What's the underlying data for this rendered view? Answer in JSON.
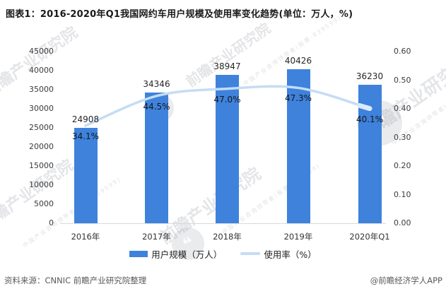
{
  "title": "图表1：2016-2020年Q1我国网约车用户规模及使用率变化趋势(单位：万人，%)",
  "chart_data": {
    "type": "bar",
    "subtype": "bar-line-combo",
    "categories": [
      "2016年",
      "2017年",
      "2018年",
      "2019年",
      "2020年Q1"
    ],
    "series": [
      {
        "name": "用户规模（万人）",
        "type": "bar",
        "values": [
          24908,
          34346,
          38947,
          40426,
          36230
        ],
        "labels": [
          "24908",
          "34346",
          "38947",
          "40426",
          "36230"
        ],
        "color": "#3e82dc",
        "axis": "left"
      },
      {
        "name": "使用率（%）",
        "type": "line",
        "values": [
          0.341,
          0.445,
          0.47,
          0.473,
          0.401
        ],
        "labels": [
          "34.1%",
          "44.5%",
          "47.0%",
          "47.3%",
          "40.1%"
        ],
        "color": "#c5dcf4",
        "axis": "right"
      }
    ],
    "left_axis": {
      "min": 0,
      "max": 45000,
      "step": 5000,
      "ticks": [
        "45000",
        "40000",
        "35000",
        "30000",
        "25000",
        "20000",
        "15000",
        "10000",
        "5000",
        "0"
      ]
    },
    "right_axis": {
      "min": 0.0,
      "max": 0.6,
      "step": 0.1,
      "ticks": [
        "0.60",
        "0.50",
        "0.40",
        "0.30",
        "0.20",
        "0.10",
        "0.00"
      ]
    },
    "grid": false,
    "legend_position": "bottom"
  },
  "footer": {
    "source": "资料来源：CNNIC 前瞻产业研究院整理",
    "credit": "@前瞻经济学人APP"
  },
  "watermark": {
    "brand": "前瞻产业研究院",
    "tagline": "中国产业咨询领导者(股票:839599)"
  }
}
